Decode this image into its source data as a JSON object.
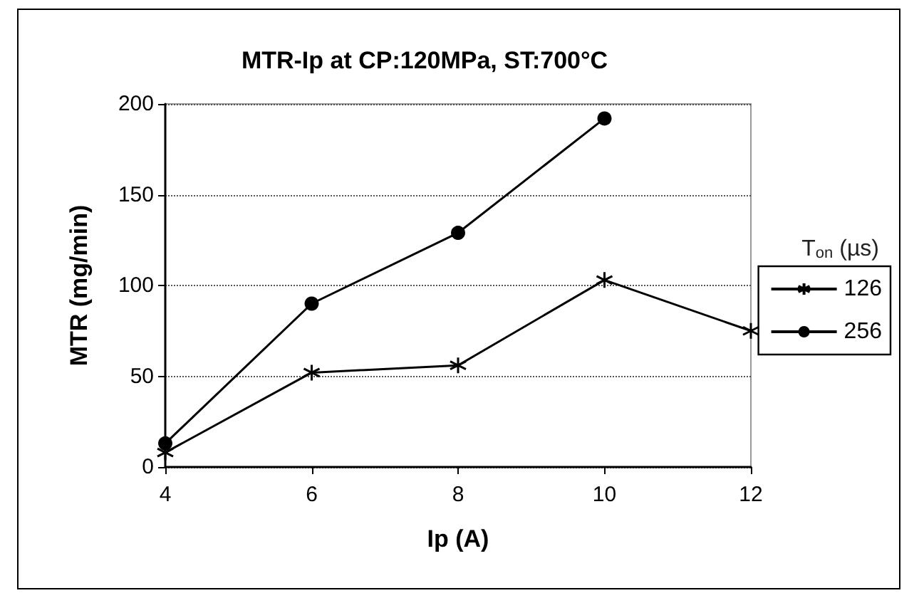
{
  "chart_data": {
    "type": "line",
    "title": "MTR-Ip at CP:120MPa, ST:700°C",
    "xlabel": "Ip (A)",
    "ylabel": "MTR (mg/min)",
    "legend_title": "T$_{on}$ (µs)",
    "x": [
      4,
      6,
      8,
      10,
      12
    ],
    "series": [
      {
        "name": "126",
        "color": "#000000",
        "marker": "cross",
        "values": [
          8,
          52,
          56,
          103,
          75
        ]
      },
      {
        "name": "256",
        "color": "#000000",
        "marker": "circle",
        "values": [
          13,
          90,
          129,
          192,
          null
        ]
      }
    ],
    "xlim": [
      4,
      12
    ],
    "xticks": [
      4,
      6,
      8,
      10,
      12
    ],
    "ylim": [
      0,
      200
    ],
    "yticks": [
      0,
      50,
      100,
      150,
      200
    ],
    "grid": "y",
    "legend": "right",
    "line_style": "solid"
  }
}
